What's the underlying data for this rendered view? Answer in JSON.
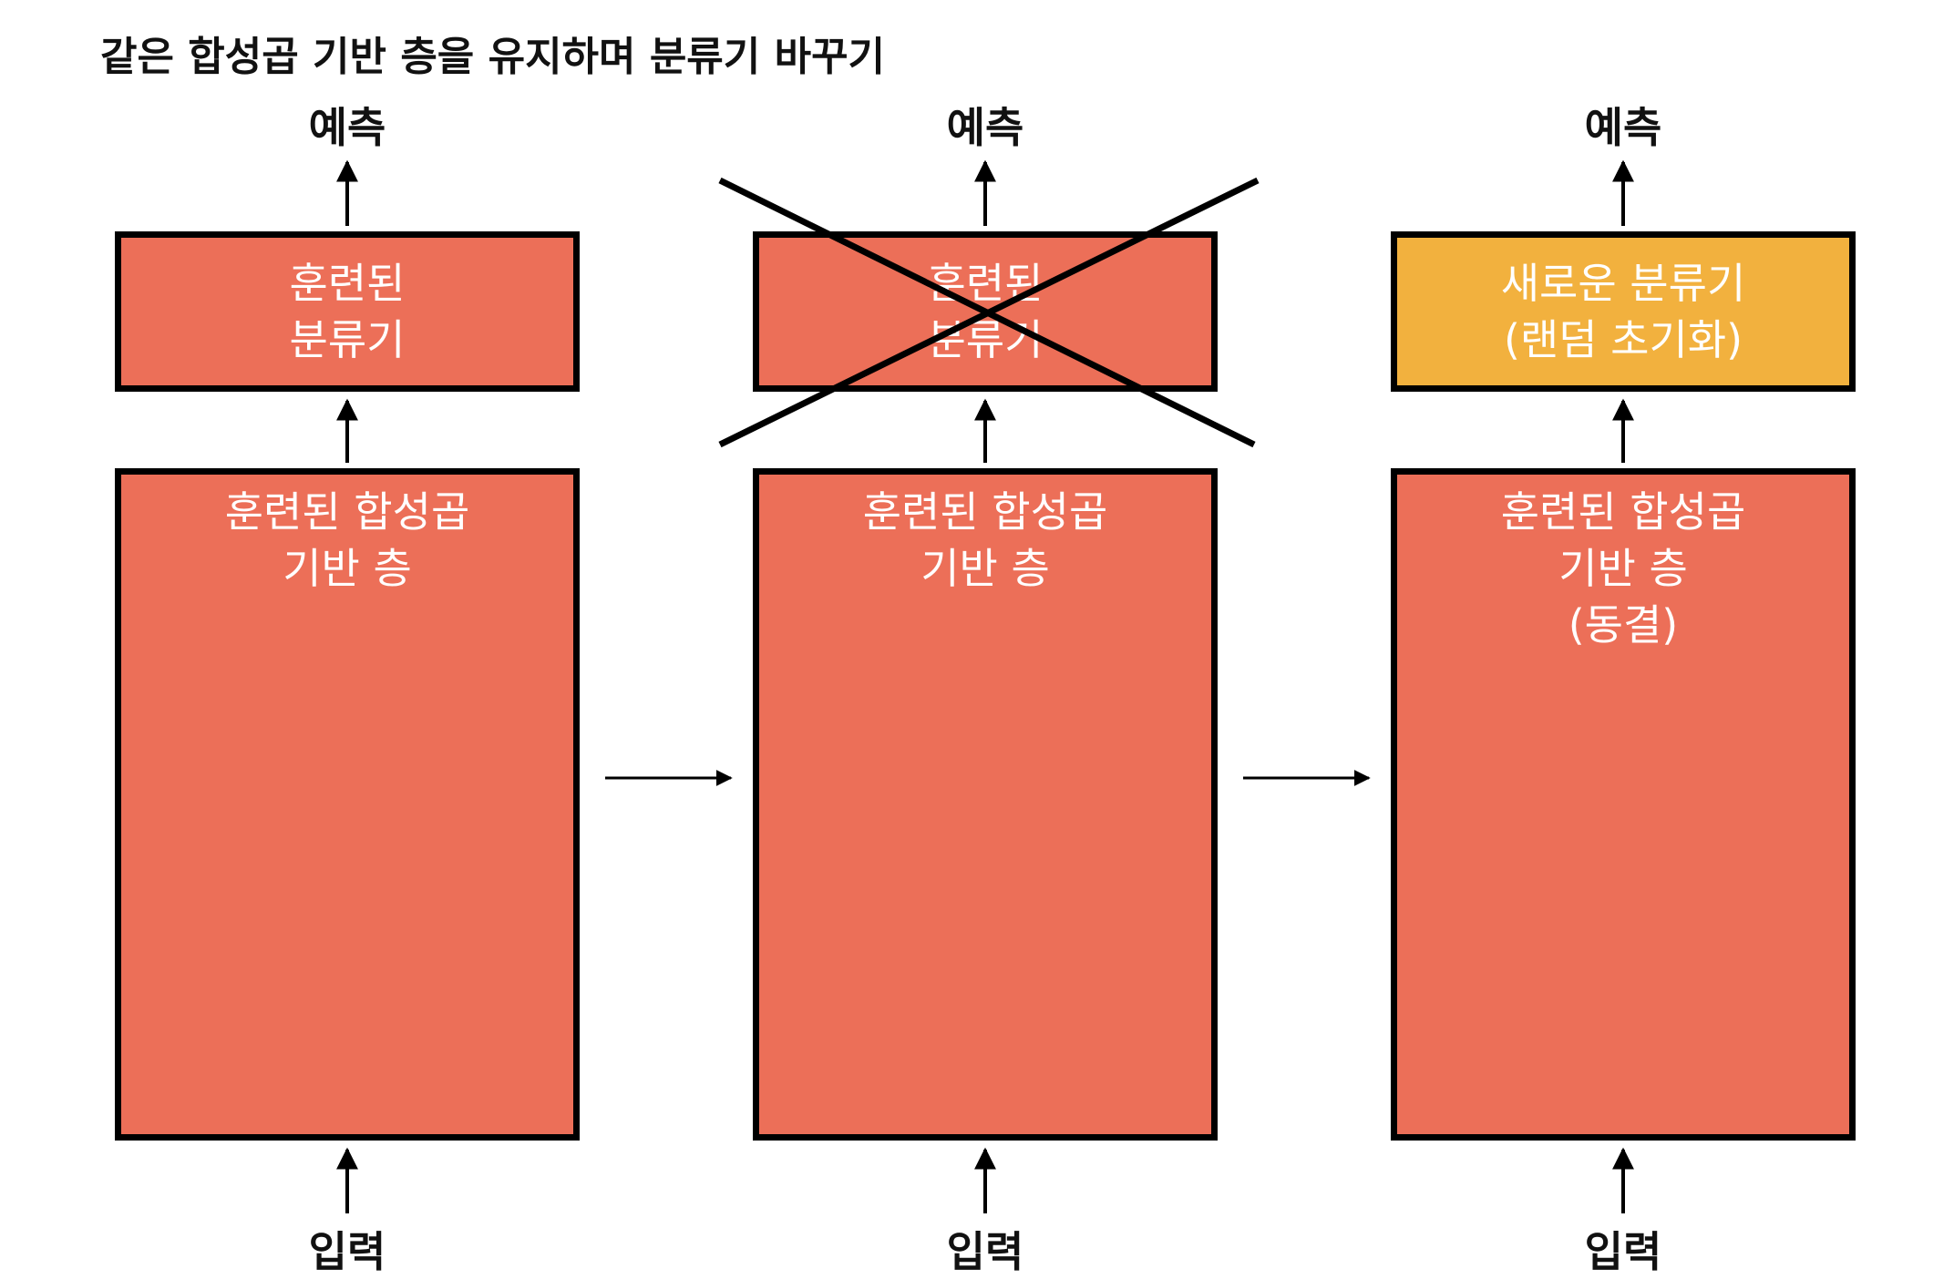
{
  "title": "같은 합성곱 기반 층을 유지하며 분류기 바꾸기",
  "panels": [
    {
      "prediction": "예측",
      "classifier_lines": [
        "훈련된",
        "분류기"
      ],
      "classifier_state": "trained",
      "base_lines": [
        "훈련된 합성곱",
        "기반 층"
      ],
      "input": "입력"
    },
    {
      "prediction": "예측",
      "classifier_lines": [
        "훈련된",
        "분류기"
      ],
      "classifier_state": "removed (crossed out)",
      "base_lines": [
        "훈련된 합성곱",
        "기반 층"
      ],
      "input": "입력"
    },
    {
      "prediction": "예측",
      "classifier_lines": [
        "새로운 분류기",
        "(랜덤 초기화)"
      ],
      "classifier_state": "new",
      "base_lines": [
        "훈련된 합성곱",
        "기반 층",
        "(동결)"
      ],
      "input": "입력"
    }
  ],
  "colors": {
    "trained_block": "#ec6f58",
    "new_classifier": "#f2b13e",
    "border": "#000000",
    "text_on_block": "#ffffff"
  },
  "icons": [
    "arrow-up-icon",
    "arrow-right-icon",
    "cross-out-icon"
  ]
}
